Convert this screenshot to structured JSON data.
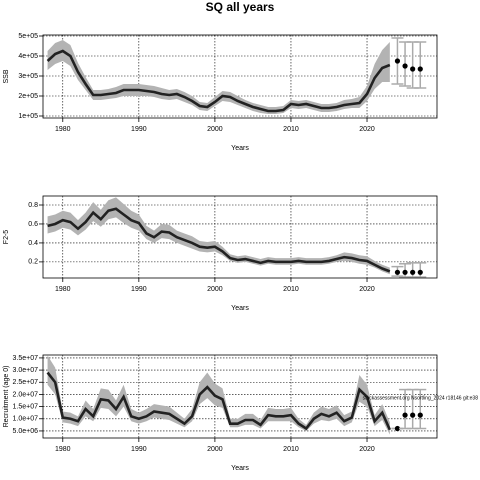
{
  "title": "SQ all years",
  "chart_data": [
    {
      "type": "line",
      "ylabel": "SSB",
      "xlabel": "Years",
      "x": [
        1978,
        1979,
        1980,
        1981,
        1982,
        1983,
        1984,
        1985,
        1986,
        1987,
        1988,
        1989,
        1990,
        1991,
        1992,
        1993,
        1994,
        1995,
        1996,
        1997,
        1998,
        1999,
        2000,
        2001,
        2002,
        2003,
        2004,
        2005,
        2006,
        2007,
        2008,
        2009,
        2010,
        2011,
        2012,
        2013,
        2014,
        2015,
        2016,
        2017,
        2018,
        2019,
        2020,
        2021,
        2022,
        2023
      ],
      "values": [
        375000.0,
        410000.0,
        425000.0,
        400000.0,
        320000.0,
        260000.0,
        205000.0,
        205000.0,
        210000.0,
        215000.0,
        230000.0,
        230000.0,
        230000.0,
        225000.0,
        220000.0,
        210000.0,
        205000.0,
        210000.0,
        195000.0,
        175000.0,
        150000.0,
        145000.0,
        170000.0,
        200000.0,
        195000.0,
        175000.0,
        160000.0,
        145000.0,
        135000.0,
        125000.0,
        125000.0,
        130000.0,
        160000.0,
        155000.0,
        160000.0,
        150000.0,
        140000.0,
        140000.0,
        145000.0,
        155000.0,
        160000.0,
        165000.0,
        210000.0,
        290000.0,
        340000.0,
        355000.0
      ],
      "lower": [
        330000.0,
        360000.0,
        375000.0,
        350000.0,
        280000.0,
        230000.0,
        180000.0,
        180000.0,
        185000.0,
        190000.0,
        200000.0,
        200000.0,
        200000.0,
        200000.0,
        195000.0,
        185000.0,
        180000.0,
        185000.0,
        170000.0,
        155000.0,
        130000.0,
        125000.0,
        150000.0,
        175000.0,
        170000.0,
        155000.0,
        140000.0,
        125000.0,
        115000.0,
        110000.0,
        110000.0,
        115000.0,
        140000.0,
        135000.0,
        140000.0,
        130000.0,
        120000.0,
        120000.0,
        125000.0,
        135000.0,
        140000.0,
        140000.0,
        175000.0,
        235000.0,
        270000.0,
        270000.0
      ],
      "upper": [
        425000.0,
        465000.0,
        480000.0,
        455000.0,
        365000.0,
        295000.0,
        230000.0,
        230000.0,
        235000.0,
        245000.0,
        260000.0,
        260000.0,
        260000.0,
        255000.0,
        250000.0,
        240000.0,
        230000.0,
        235000.0,
        220000.0,
        200000.0,
        170000.0,
        165000.0,
        195000.0,
        225000.0,
        220000.0,
        200000.0,
        180000.0,
        165000.0,
        155000.0,
        145000.0,
        145000.0,
        150000.0,
        180000.0,
        175000.0,
        180000.0,
        170000.0,
        160000.0,
        160000.0,
        165000.0,
        180000.0,
        185000.0,
        195000.0,
        250000.0,
        360000.0,
        430000.0,
        470000.0
      ],
      "projection": {
        "x": [
          2024,
          2025,
          2026,
          2027
        ],
        "values": [
          375000.0,
          350000.0,
          335000.0,
          335000.0
        ],
        "lower": [
          260000.0,
          250000.0,
          240000.0,
          240000.0
        ],
        "upper": [
          490000.0,
          470000.0,
          470000.0,
          470000.0
        ]
      },
      "xlim": [
        1977.4,
        2029.2
      ],
      "xticks": [
        1980,
        1990,
        2000,
        2010,
        2020
      ],
      "ylim": [
        90000.0,
        505000.0
      ],
      "yticks": [
        {
          "value": 100000.0,
          "label": "1e+05"
        },
        {
          "value": 200000.0,
          "label": "2e+05"
        },
        {
          "value": 300000.0,
          "label": "3e+05"
        },
        {
          "value": 400000.0,
          "label": "4e+05"
        },
        {
          "value": 500000.0,
          "label": "5e+05"
        }
      ],
      "grid": true,
      "color": "#222222",
      "band_color": "#b3b3b3"
    },
    {
      "type": "line",
      "ylabel": "F2-5",
      "xlabel": "Years",
      "x": [
        1978,
        1979,
        1980,
        1981,
        1982,
        1983,
        1984,
        1985,
        1986,
        1987,
        1988,
        1989,
        1990,
        1991,
        1992,
        1993,
        1994,
        1995,
        1996,
        1997,
        1998,
        1999,
        2000,
        2001,
        2002,
        2003,
        2004,
        2005,
        2006,
        2007,
        2008,
        2009,
        2010,
        2011,
        2012,
        2013,
        2014,
        2015,
        2016,
        2017,
        2018,
        2019,
        2020,
        2021,
        2022,
        2023
      ],
      "values": [
        0.58,
        0.6,
        0.64,
        0.62,
        0.55,
        0.62,
        0.72,
        0.65,
        0.74,
        0.76,
        0.7,
        0.64,
        0.61,
        0.5,
        0.46,
        0.52,
        0.51,
        0.46,
        0.43,
        0.4,
        0.36,
        0.35,
        0.36,
        0.31,
        0.24,
        0.22,
        0.23,
        0.21,
        0.19,
        0.21,
        0.2,
        0.2,
        0.2,
        0.21,
        0.2,
        0.2,
        0.2,
        0.21,
        0.23,
        0.25,
        0.24,
        0.22,
        0.21,
        0.17,
        0.13,
        0.1
      ],
      "lower": [
        0.5,
        0.52,
        0.56,
        0.54,
        0.48,
        0.54,
        0.63,
        0.57,
        0.65,
        0.67,
        0.61,
        0.56,
        0.53,
        0.44,
        0.4,
        0.45,
        0.44,
        0.4,
        0.37,
        0.34,
        0.31,
        0.3,
        0.31,
        0.27,
        0.21,
        0.19,
        0.2,
        0.18,
        0.16,
        0.18,
        0.17,
        0.17,
        0.17,
        0.18,
        0.17,
        0.17,
        0.17,
        0.18,
        0.2,
        0.21,
        0.2,
        0.18,
        0.17,
        0.14,
        0.1,
        0.07
      ],
      "upper": [
        0.68,
        0.7,
        0.74,
        0.72,
        0.64,
        0.72,
        0.83,
        0.75,
        0.85,
        0.88,
        0.81,
        0.74,
        0.7,
        0.58,
        0.53,
        0.6,
        0.59,
        0.53,
        0.5,
        0.47,
        0.42,
        0.41,
        0.42,
        0.36,
        0.28,
        0.26,
        0.27,
        0.25,
        0.23,
        0.25,
        0.24,
        0.24,
        0.24,
        0.25,
        0.24,
        0.24,
        0.24,
        0.25,
        0.27,
        0.3,
        0.29,
        0.27,
        0.26,
        0.21,
        0.17,
        0.14
      ],
      "projection": {
        "x": [
          2024,
          2025,
          2026,
          2027
        ],
        "values": [
          0.09,
          0.09,
          0.09,
          0.09
        ],
        "lower": [
          0.05,
          0.04,
          0.04,
          0.04
        ],
        "upper": [
          0.15,
          0.18,
          0.19,
          0.19
        ]
      },
      "xlim": [
        1977.4,
        2029.2
      ],
      "xticks": [
        1980,
        1990,
        2000,
        2010,
        2020
      ],
      "ylim": [
        0.03,
        0.895
      ],
      "yticks": [
        0.2,
        0.4,
        0.6,
        0.8
      ],
      "grid": true,
      "color": "#222222",
      "band_color": "#b3b3b3"
    },
    {
      "type": "line",
      "ylabel": "Recruitment (age 0)",
      "xlabel": "Years",
      "annotation": "stockassessment.org Nsortling_2024 r18146 git:e38",
      "x": [
        1978,
        1979,
        1980,
        1981,
        1982,
        1983,
        1984,
        1985,
        1986,
        1987,
        1988,
        1989,
        1990,
        1991,
        1992,
        1993,
        1994,
        1995,
        1996,
        1997,
        1998,
        1999,
        2000,
        2001,
        2002,
        2003,
        2004,
        2005,
        2006,
        2007,
        2008,
        2009,
        2010,
        2011,
        2012,
        2013,
        2014,
        2015,
        2016,
        2017,
        2018,
        2019,
        2020,
        2021,
        2022,
        2023
      ],
      "values": [
        29000000.0,
        25000000.0,
        10500000.0,
        10000000.0,
        9000000.0,
        14000000.0,
        11000000.0,
        18000000.0,
        17500000.0,
        14000000.0,
        19000000.0,
        11000000.0,
        10000000.0,
        11000000.0,
        13000000.0,
        12500000.0,
        12000000.0,
        10000000.0,
        8000000.0,
        11000000.0,
        20000000.0,
        23000000.0,
        19500000.0,
        18000000.0,
        8000000.0,
        8000000.0,
        9500000.0,
        9500000.0,
        7500000.0,
        11500000.0,
        11000000.0,
        11000000.0,
        11500000.0,
        8000000.0,
        6000000.0,
        10000000.0,
        12000000.0,
        11000000.0,
        12500000.0,
        9000000.0,
        10500000.0,
        22000000.0,
        19000000.0,
        9000000.0,
        12500000.0,
        5500000.0
      ],
      "lower": [
        24000000.0,
        20000000.0,
        8500000.0,
        8000000.0,
        7000000.0,
        11000000.0,
        9000000.0,
        14500000.0,
        14000000.0,
        11000000.0,
        15000000.0,
        9000000.0,
        8000000.0,
        9000000.0,
        10500000.0,
        10000000.0,
        9500000.0,
        8000000.0,
        6500000.0,
        9000000.0,
        16000000.0,
        18500000.0,
        15500000.0,
        14500000.0,
        6500000.0,
        6500000.0,
        7500000.0,
        7500000.0,
        6000000.0,
        9000000.0,
        9000000.0,
        9000000.0,
        9000000.0,
        6500000.0,
        5000000.0,
        8000000.0,
        9500000.0,
        9000000.0,
        10000000.0,
        7000000.0,
        8500000.0,
        17000000.0,
        15000000.0,
        7000000.0,
        9500000.0,
        3500000.0
      ],
      "upper": [
        36000000.0,
        31000000.0,
        13000000.0,
        12500000.0,
        11000000.0,
        17500000.0,
        14000000.0,
        22500000.0,
        22000000.0,
        17500000.0,
        24000000.0,
        14000000.0,
        12500000.0,
        14000000.0,
        16000000.0,
        15500000.0,
        15000000.0,
        12500000.0,
        10000000.0,
        14000000.0,
        25000000.0,
        29000000.0,
        24500000.0,
        22500000.0,
        10000000.0,
        10000000.0,
        12000000.0,
        12000000.0,
        9500000.0,
        14500000.0,
        14000000.0,
        14000000.0,
        14500000.0,
        10000000.0,
        7500000.0,
        12500000.0,
        15000000.0,
        14000000.0,
        15500000.0,
        11500000.0,
        13000000.0,
        28000000.0,
        24000000.0,
        11500000.0,
        16000000.0,
        8500000.0
      ],
      "projection": {
        "x": [
          2024,
          2025,
          2026,
          2027
        ],
        "values": [
          6000000.0,
          11500000.0,
          11500000.0,
          11500000.0
        ],
        "lower": [
          6000000.0,
          6000000.0,
          6000000.0,
          6000000.0
        ],
        "upper": [
          6000000.0,
          22000000.0,
          22000000.0,
          22000000.0
        ]
      },
      "xlim": [
        1977.4,
        2029.2
      ],
      "xticks": [
        1980,
        1990,
        2000,
        2010,
        2020
      ],
      "ylim": [
        2100000.0,
        36200000.0
      ],
      "yticks": [
        {
          "value": 5000000.0,
          "label": "5.0e+06"
        },
        {
          "value": 10000000.0,
          "label": "1.0e+07"
        },
        {
          "value": 15000000.0,
          "label": "1.5e+07"
        },
        {
          "value": 20000000.0,
          "label": "2.0e+07"
        },
        {
          "value": 25000000.0,
          "label": "2.5e+07"
        },
        {
          "value": 30000000.0,
          "label": "3.0e+07"
        },
        {
          "value": 35000000.0,
          "label": "3.5e+07"
        }
      ],
      "grid": true,
      "color": "#222222",
      "band_color": "#b3b3b3"
    }
  ]
}
